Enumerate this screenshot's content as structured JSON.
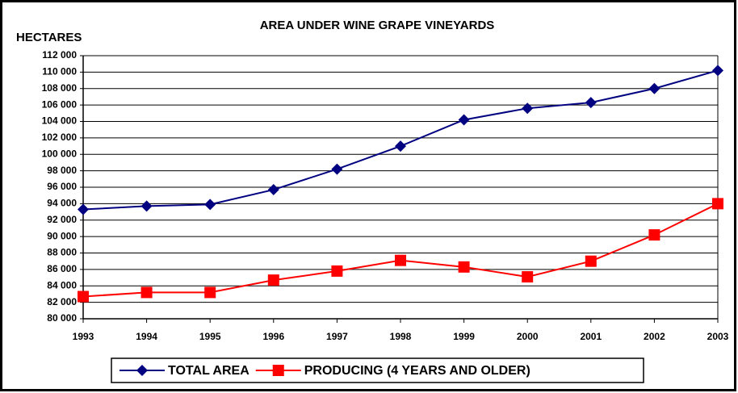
{
  "chart_data": {
    "type": "line",
    "title": "AREA UNDER WINE GRAPE VINEYARDS",
    "y_label": "HECTARES",
    "categories": [
      "1993",
      "1994",
      "1995",
      "1996",
      "1997",
      "1998",
      "1999",
      "2000",
      "2001",
      "2002",
      "2003"
    ],
    "series": [
      {
        "name": "TOTAL AREA",
        "color": "#000080",
        "marker": "diamond",
        "values": [
          93300,
          93700,
          93900,
          95700,
          98200,
          101000,
          104200,
          105600,
          106300,
          108000,
          110200
        ]
      },
      {
        "name": "PRODUCING (4 YEARS AND OLDER)",
        "color": "#ff0000",
        "marker": "square",
        "values": [
          82700,
          83200,
          83200,
          84700,
          85800,
          87100,
          86300,
          85100,
          87000,
          90200,
          94000
        ]
      }
    ],
    "ylim": [
      80000,
      112000
    ],
    "yticks": [
      {
        "value": 80000,
        "label": "80 000"
      },
      {
        "value": 82000,
        "label": "82 000"
      },
      {
        "value": 84000,
        "label": "84 000"
      },
      {
        "value": 86000,
        "label": "86 000"
      },
      {
        "value": 88000,
        "label": "88 000"
      },
      {
        "value": 90000,
        "label": "90 000"
      },
      {
        "value": 92000,
        "label": "92 000"
      },
      {
        "value": 94000,
        "label": "94 000"
      },
      {
        "value": 96000,
        "label": "96 000"
      },
      {
        "value": 98000,
        "label": "98 000"
      },
      {
        "value": 100000,
        "label": "100 000"
      },
      {
        "value": 102000,
        "label": "102 000"
      },
      {
        "value": 104000,
        "label": "104 000"
      },
      {
        "value": 106000,
        "label": "106 000"
      },
      {
        "value": 108000,
        "label": "108 000"
      },
      {
        "value": 110000,
        "label": "110 000"
      },
      {
        "value": 112000,
        "label": "112 000"
      }
    ],
    "grid": true,
    "legend": "bottom"
  }
}
